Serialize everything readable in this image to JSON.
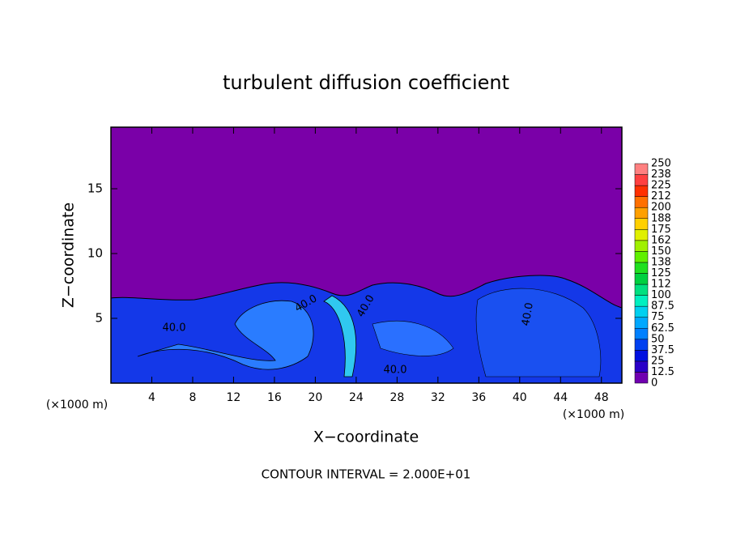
{
  "chart_data": {
    "type": "contour",
    "title": "turbulent diffusion coefficient",
    "xlabel": "X−coordinate",
    "ylabel": "Z−coordinate",
    "x_unit_left": "(×1000 m)",
    "x_unit_right": "(×1000 m)",
    "footer": "CONTOUR INTERVAL = 2.000E+01",
    "xlim": [
      0,
      50
    ],
    "xticks": [
      4,
      8,
      12,
      16,
      20,
      24,
      28,
      32,
      36,
      40,
      44,
      48
    ],
    "ylim": [
      0,
      19.75
    ],
    "yticks": [
      5,
      10,
      15
    ],
    "contour_labels": [
      "40.0",
      "40.0",
      "40.0",
      "40.0",
      "40.0"
    ],
    "levels": [
      0,
      12.5,
      25,
      37.5,
      50,
      62.5,
      75,
      87.5,
      100,
      112,
      125,
      138,
      150,
      162,
      175,
      188,
      200,
      212,
      225,
      238,
      250
    ],
    "colors": [
      "#7000b0",
      "#2a00c8",
      "#0010e0",
      "#0040f0",
      "#0080ff",
      "#00a8ff",
      "#00d0f0",
      "#00f0c0",
      "#00e080",
      "#00d040",
      "#20e020",
      "#60f000",
      "#a0f000",
      "#e0f000",
      "#ffd000",
      "#ffa000",
      "#ff7000",
      "#ff3000",
      "#ff4040",
      "#ff8080"
    ]
  }
}
